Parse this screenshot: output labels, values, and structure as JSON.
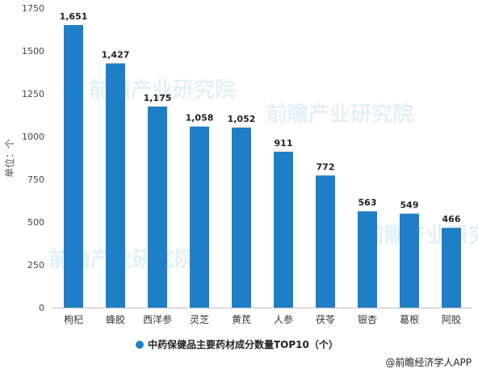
{
  "chart_data": {
    "type": "bar",
    "categories": [
      "枸杞",
      "蜂胶",
      "西洋参",
      "灵芝",
      "黄芪",
      "人参",
      "茯苓",
      "银杏",
      "葛根",
      "阿胶"
    ],
    "series": [
      {
        "name": "中药保健品主要药材成分数量TOP10（个）",
        "values": [
          1651,
          1427,
          1175,
          1058,
          1052,
          911,
          772,
          563,
          549,
          466
        ]
      }
    ],
    "data_labels": [
      "1,651",
      "1,427",
      "1,175",
      "1,058",
      "1,052",
      "911",
      "772",
      "563",
      "549",
      "466"
    ],
    "ylabel": "单位：个",
    "ylim": [
      0,
      1750
    ],
    "yticks": [
      0,
      250,
      500,
      750,
      1000,
      1250,
      1500,
      1750
    ],
    "legend_position": "bottom",
    "grid": false,
    "bar_color": "#1f7fc6",
    "watermark": "前瞻产业研究院"
  },
  "source": "@前瞻经济学人APP"
}
